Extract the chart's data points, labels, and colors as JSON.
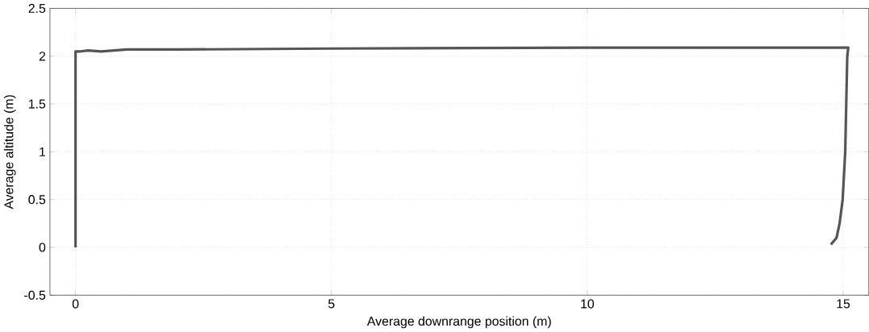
{
  "chart_data": {
    "type": "line",
    "xlabel": "Average downrange position (m)",
    "ylabel": "Average altitude (m)",
    "x": [
      0,
      0,
      0.1,
      0.25,
      0.5,
      1,
      2,
      5,
      10,
      15,
      15.1,
      15.08,
      15.06,
      15.04,
      14.99,
      14.93,
      14.87,
      14.76
    ],
    "values": [
      0,
      2.05,
      2.05,
      2.06,
      2.05,
      2.07,
      2.07,
      2.08,
      2.09,
      2.09,
      2.09,
      2.0,
      1.5,
      1.0,
      0.5,
      0.25,
      0.1,
      0.03
    ],
    "color": "#555555",
    "xlim": [
      -0.5,
      15.5
    ],
    "ylim": [
      -0.5,
      2.5
    ],
    "xticks": [
      0,
      5,
      10,
      15
    ],
    "yticks": [
      -0.5,
      0,
      0.5,
      1,
      1.5,
      2,
      2.5
    ],
    "grid": true,
    "line_style": "solid"
  }
}
